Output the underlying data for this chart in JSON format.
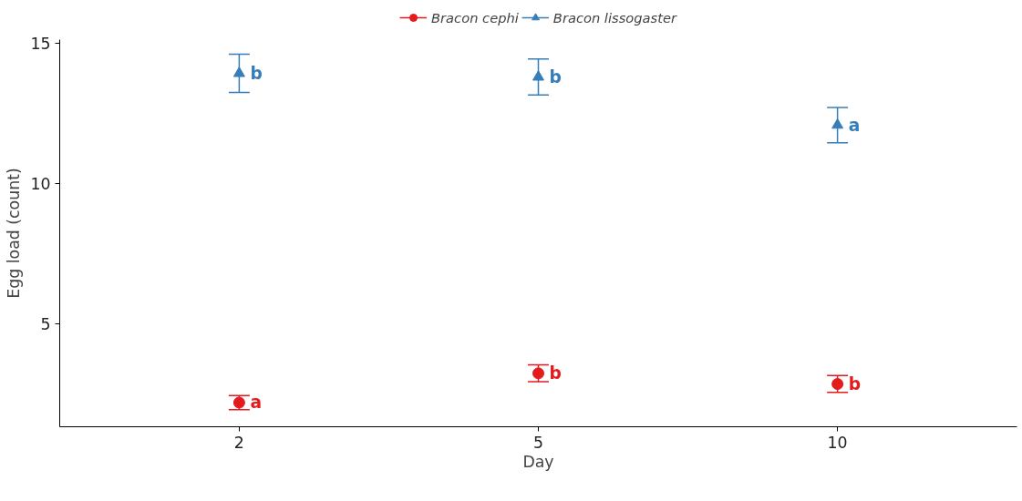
{
  "chart_data": {
    "type": "scatter",
    "xlabel": "Day",
    "ylabel": "Egg load (count)",
    "categories": [
      "2",
      "5",
      "10"
    ],
    "series": [
      {
        "name": "Bracon cephi",
        "color": "#e41a1c",
        "marker": "circle",
        "values": [
          2.21,
          3.25,
          2.87
        ],
        "errors": [
          0.25,
          0.3,
          0.3
        ]
      },
      {
        "name": "Bracon lissogaster",
        "color": "#377eb8",
        "marker": "triangle",
        "values": [
          13.92,
          13.79,
          12.08
        ],
        "errors": [
          0.68,
          0.64,
          0.63
        ]
      }
    ],
    "annotations": [
      {
        "text": "a",
        "x": "2",
        "y": 2.21
      },
      {
        "text": "b",
        "x": "5",
        "y": 3.25
      },
      {
        "text": "b",
        "x": "10",
        "y": 2.87
      },
      {
        "text": "b",
        "x": "2",
        "y": 13.92
      },
      {
        "text": "b",
        "x": "5",
        "y": 13.79
      },
      {
        "text": "a",
        "x": "10",
        "y": 12.08
      }
    ],
    "ylim": [
      1.35,
      15.12
    ],
    "yticks": [
      5,
      10,
      15
    ],
    "grid": false,
    "legend": "top"
  }
}
